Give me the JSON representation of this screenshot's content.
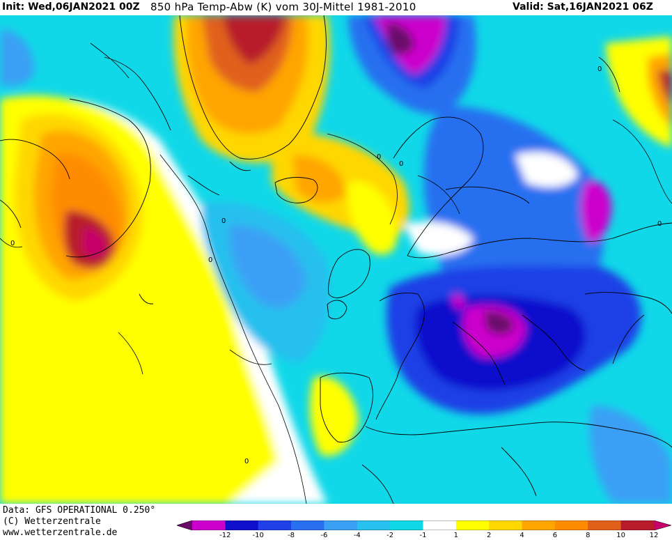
{
  "header": {
    "init_label": "Init: Wed,06JAN2021 00Z",
    "title": "850 hPa Temp-Abw (K) vom 30J-Mittel 1981-2010",
    "valid_label": "Valid: Sat,16JAN2021 06Z"
  },
  "map": {
    "contour_labels": [
      "0",
      "0",
      "0",
      "0",
      "0",
      "0",
      "0",
      "0"
    ]
  },
  "footer": {
    "data_line": "Data: GFS OPERATIONAL 0.250°",
    "copyright_line": "(C) Wetterzentrale",
    "url_line": "www.wetterzentrale.de"
  },
  "legend": {
    "colors": [
      "#6a0a6a",
      "#cc00cc",
      "#1010cc",
      "#1e40e6",
      "#2870f0",
      "#3aa0f5",
      "#28c0ee",
      "#10d8e8",
      "#ffffff",
      "#ffff00",
      "#ffd700",
      "#ffa500",
      "#ff8c00",
      "#e0601a",
      "#b81c2a",
      "#c8006a"
    ],
    "tick_labels": [
      "-12",
      "-10",
      "-8",
      "-6",
      "-4",
      "-2",
      "-1",
      "1",
      "2",
      "4",
      "6",
      "8",
      "10",
      "12"
    ]
  }
}
